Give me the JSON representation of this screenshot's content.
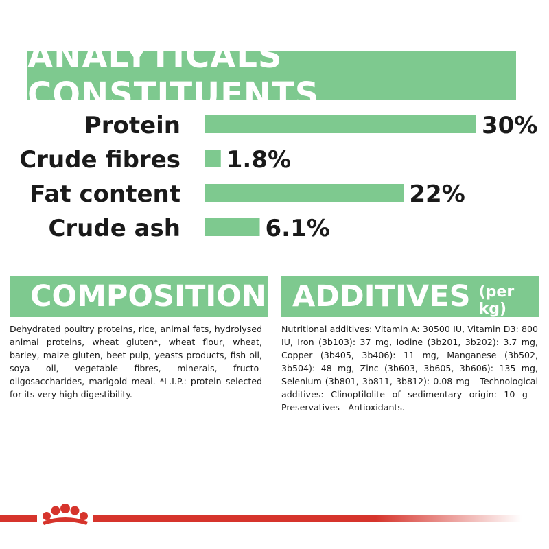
{
  "analytics_title": "ANALYTICALS CONSTITUENTS",
  "chart_data": {
    "type": "bar",
    "orientation": "horizontal",
    "title": "ANALYTICALS CONSTITUENTS",
    "categories": [
      "Protein",
      "Crude fibres",
      "Fat content",
      "Crude ash"
    ],
    "values": [
      30,
      1.8,
      22,
      6.1
    ],
    "value_labels": [
      "30%",
      "1.8%",
      "22%",
      "6.1%"
    ],
    "unit": "%",
    "xlim": [
      0,
      30
    ],
    "bar_color": "#7ec98f",
    "grid": false,
    "legend": "none"
  },
  "composition": {
    "title": "COMPOSITION",
    "text": "Dehydrated poultry proteins, rice, animal fats, hydrolysed animal proteins, wheat gluten*, wheat flour, wheat, barley, maize gluten, beet pulp, yeasts products, fish oil, soya oil, vegetable fibres, minerals, fructo-oligosaccharides, marigold meal. *L.I.P.: protein selected for its very high digestibility."
  },
  "additives": {
    "title": "ADDITIVES",
    "title_suffix": "(per kg)",
    "text": "Nutritional additives: Vitamin A: 30500 IU, Vitamin D3: 800 IU, Iron (3b103): 37 mg, Iodine (3b201, 3b202): 3.7 mg, Copper (3b405, 3b406): 11 mg, Manganese (3b502, 3b504): 48 mg, Zinc (3b603, 3b605, 3b606): 135 mg, Selenium (3b801, 3b811, 3b812): 0.08 mg - Technological additives: Clinoptilolite of sedimentary origin: 10 g - Preservatives - Antioxidants."
  },
  "colors": {
    "accent_green": "#7ec98f",
    "brand_red": "#d6342c"
  },
  "icons": {
    "logo": "royal-canin-crown-icon"
  }
}
